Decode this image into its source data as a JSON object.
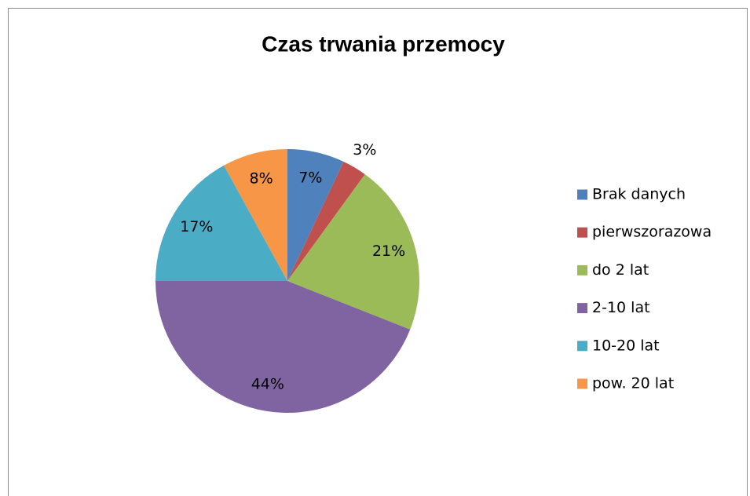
{
  "chart_data": {
    "type": "pie",
    "title": "Czas trwania przemocy",
    "categories": [
      "Brak danych",
      "pierwszorazowa",
      "do 2 lat",
      "2-10 lat",
      "10-20 lat",
      "pow. 20 lat"
    ],
    "values": [
      7,
      3,
      21,
      44,
      17,
      8
    ],
    "value_labels": [
      "7%",
      "3%",
      "21%",
      "44%",
      "17%",
      "8%"
    ],
    "colors": [
      "#4f81bd",
      "#c0504d",
      "#9bbb59",
      "#8064a2",
      "#4bacc6",
      "#f79646"
    ],
    "legend": "right"
  }
}
